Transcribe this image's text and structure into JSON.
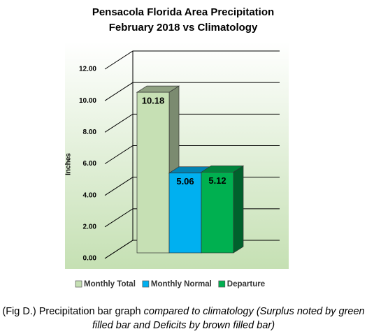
{
  "chart_data": {
    "type": "bar3d",
    "title": [
      "Pensacola Florida Area Precipitation",
      "February 2018 vs Climatology"
    ],
    "y_label": "Inches",
    "categories": [
      "Monthly Total",
      "Monthly Normal",
      "Departure"
    ],
    "values": [
      10.18,
      5.06,
      5.12
    ],
    "colors": [
      "#c6e0b4",
      "#00b0f0",
      "#00b050"
    ],
    "ylim": [
      0,
      12
    ],
    "yticks": [
      {
        "value": 0,
        "label": "0.00"
      },
      {
        "value": 2,
        "label": "2.00"
      },
      {
        "value": 4,
        "label": "4.00"
      },
      {
        "value": 6,
        "label": "6.00"
      },
      {
        "value": 8,
        "label": "8.00"
      },
      {
        "value": 10,
        "label": "10.00"
      },
      {
        "value": 12,
        "label": "12.00"
      }
    ],
    "grid": true
  },
  "caption": {
    "text": "(Fig D.) Precipitation bar graph",
    "italic": "compared to climatology (Surplus noted by green filled bar and Deficits by brown filled bar)"
  }
}
